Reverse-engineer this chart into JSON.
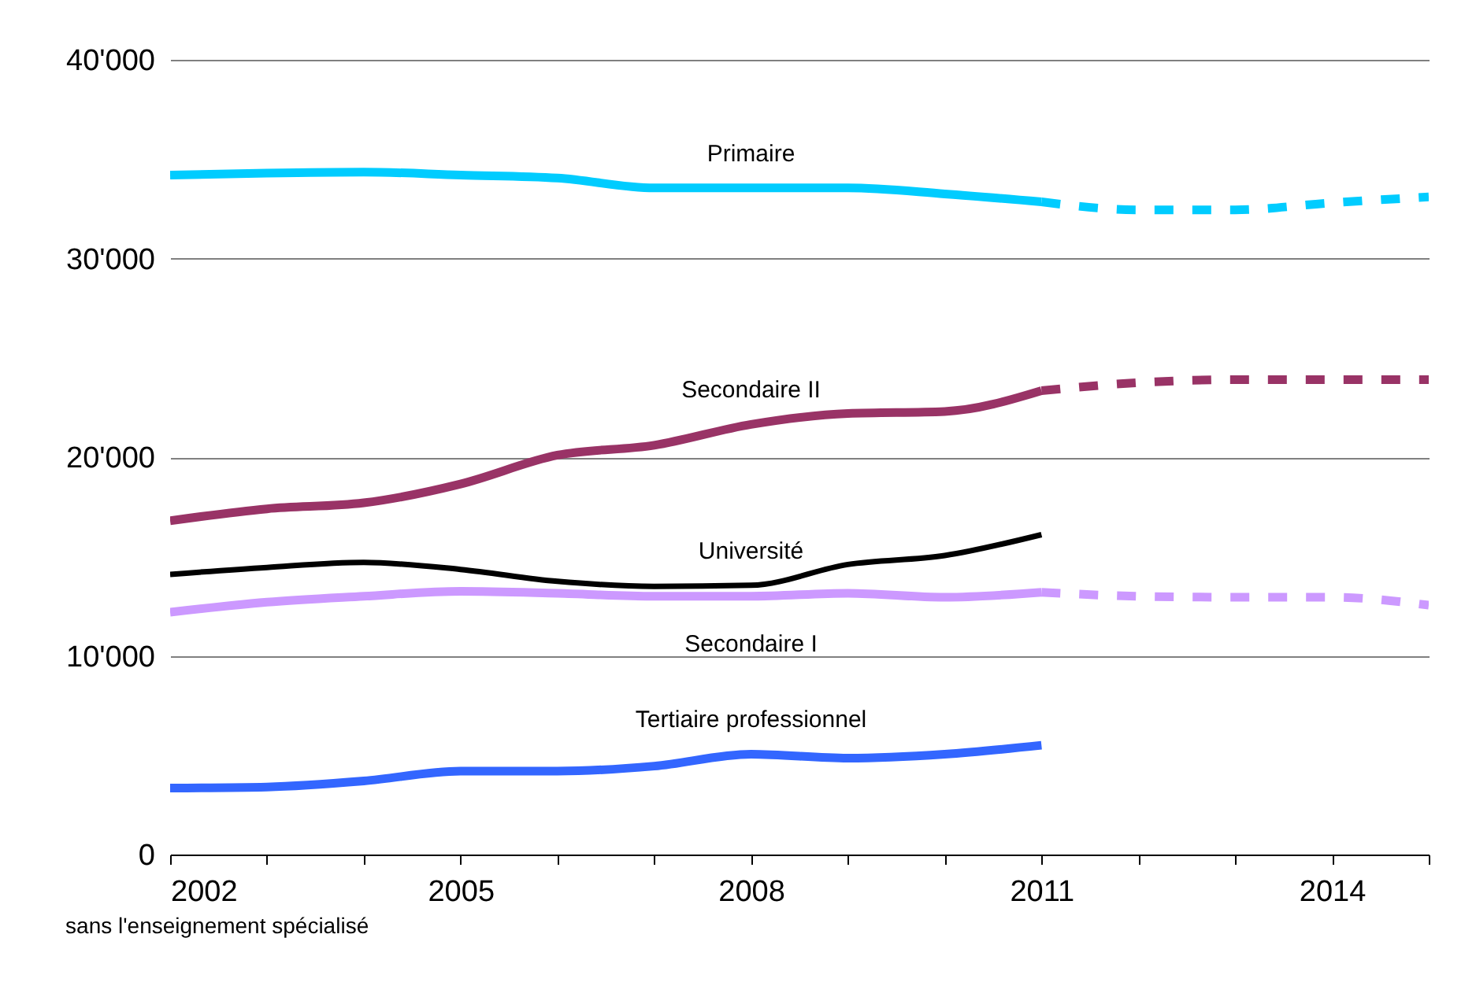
{
  "chart_data": {
    "type": "line",
    "x": [
      2002,
      2003,
      2004,
      2005,
      2006,
      2007,
      2008,
      2009,
      2010,
      2011
    ],
    "series": [
      {
        "name": "Primaire",
        "color": "#00ccff",
        "line_style": "solid",
        "values": [
          34200,
          34300,
          34350,
          34200,
          34050,
          33550,
          33550,
          33550,
          33250,
          32850
        ]
      },
      {
        "color": "#00ccff",
        "line_style": "dashed",
        "x": [
          2011,
          2012,
          2013,
          2014,
          2015
        ],
        "values": [
          32850,
          32450,
          32450,
          32800,
          33100
        ]
      },
      {
        "name": "Secondaire II",
        "color": "#993366",
        "line_style": "solid",
        "values": [
          16800,
          17400,
          17700,
          18650,
          20100,
          20600,
          21650,
          22200,
          22300,
          23350
        ]
      },
      {
        "color": "#993366",
        "line_style": "dashed",
        "x": [
          2011,
          2012,
          2013,
          2014,
          2015
        ],
        "values": [
          23350,
          23750,
          23900,
          23900,
          23900
        ]
      },
      {
        "name": "Université",
        "color": "#000000",
        "line_style": "solid",
        "values": [
          14100,
          14450,
          14700,
          14350,
          13750,
          13500,
          13550,
          14600,
          15050,
          16100
        ]
      },
      {
        "name": "Secondaire I",
        "color": "#cc99ff",
        "line_style": "solid",
        "values": [
          12200,
          12700,
          13000,
          13250,
          13150,
          13000,
          13000,
          13150,
          12950,
          13200
        ]
      },
      {
        "color": "#cc99ff",
        "line_style": "dashed",
        "x": [
          2011,
          2012,
          2013,
          2014,
          2015
        ],
        "values": [
          13200,
          13000,
          12950,
          12950,
          12550
        ]
      },
      {
        "name": "Tertiaire professionnel",
        "color": "#3366ff",
        "line_style": "solid",
        "values": [
          3350,
          3400,
          3700,
          4200,
          4200,
          4450,
          5050,
          4850,
          5050,
          5500
        ]
      }
    ],
    "xlim": [
      2002,
      2015
    ],
    "xticks": [
      2002,
      {
        "value": 2003,
        "label": null
      },
      {
        "value": 2004,
        "label": null
      },
      2005,
      {
        "value": 2006,
        "label": null
      },
      {
        "value": 2007,
        "label": null
      },
      2008,
      {
        "value": 2009,
        "label": null
      },
      {
        "value": 2010,
        "label": null
      },
      2011,
      {
        "value": 2012,
        "label": null
      },
      {
        "value": 2013,
        "label": null
      },
      2014,
      {
        "value": 2015,
        "label": null
      }
    ],
    "ylim": [
      0,
      40000
    ],
    "yticks": [
      {
        "value": 0,
        "label": "0"
      },
      {
        "value": 10000,
        "label": "10'000"
      },
      {
        "value": 20000,
        "label": "20'000"
      },
      {
        "value": 30000,
        "label": "30'000"
      },
      {
        "value": 40000,
        "label": "40'000"
      }
    ],
    "grid": "y",
    "annotations": [
      "sans l'enseignement spécialisé"
    ]
  }
}
